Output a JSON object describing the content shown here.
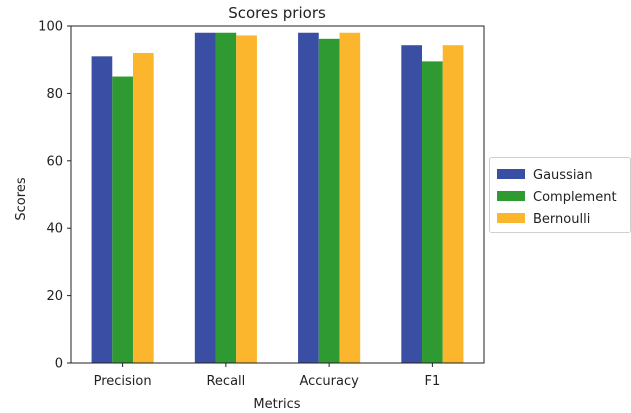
{
  "chart_data": {
    "type": "bar",
    "title": "Scores priors",
    "xlabel": "Metrics",
    "ylabel": "Scores",
    "categories": [
      "Precision",
      "Recall",
      "Accuracy",
      "F1"
    ],
    "series": [
      {
        "name": "Gaussian",
        "color": "#3a4fa3",
        "values": [
          91,
          98,
          98,
          94.3
        ]
      },
      {
        "name": "Complement",
        "color": "#2e9a31",
        "values": [
          85,
          98,
          96.2,
          89.5
        ]
      },
      {
        "name": "Bernoulli",
        "color": "#fbb62d",
        "values": [
          92,
          97.2,
          98,
          94.3
        ]
      }
    ],
    "ylim": [
      0,
      100
    ],
    "yticks": [
      0,
      20,
      40,
      60,
      80,
      100
    ],
    "grid": false,
    "legend_position": "outside-right"
  }
}
